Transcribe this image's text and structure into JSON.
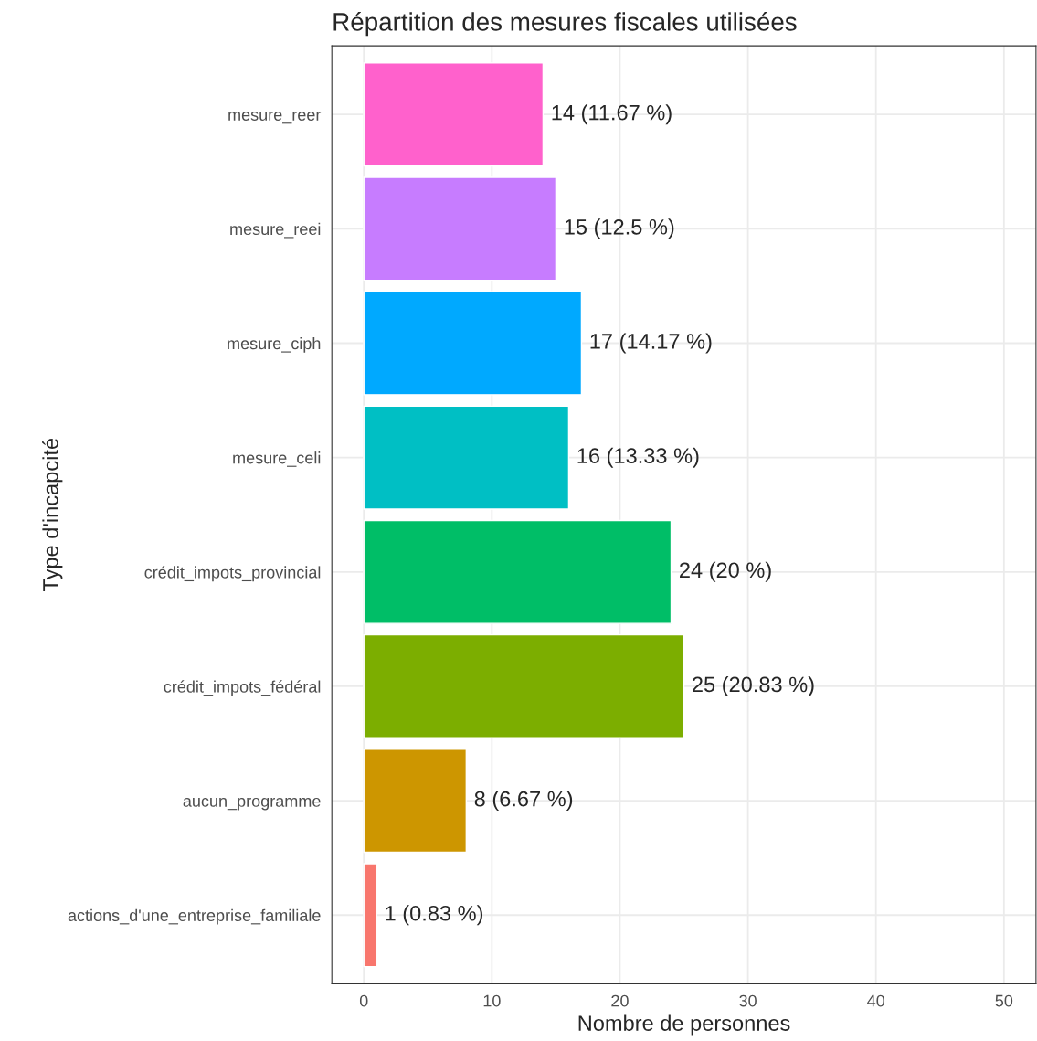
{
  "chart_data": {
    "type": "bar",
    "orientation": "horizontal",
    "title": "Répartition des mesures fiscales utilisées",
    "xlabel": "Nombre de personnes",
    "ylabel": "Type d'incapcité",
    "categories": [
      "mesure_reer",
      "mesure_reei",
      "mesure_ciph",
      "mesure_celi",
      "crédit_impots_provincial",
      "crédit_impots_fédéral",
      "aucun_programme",
      "actions_d'une_entreprise_familiale"
    ],
    "values": [
      14,
      15,
      17,
      16,
      24,
      25,
      8,
      1
    ],
    "colors": [
      "#ff61cc",
      "#c77cff",
      "#00a9ff",
      "#00bfc4",
      "#00be67",
      "#7cae00",
      "#cd9600",
      "#f8766d"
    ],
    "value_labels": [
      "14 (11.67 %)",
      "15 (12.5 %)",
      "17 (14.17 %)",
      "16 (13.33 %)",
      "24 (20 %)",
      "25 (20.83 %)",
      "8 (6.67 %)",
      "1 (0.83 %)"
    ],
    "xlim": [
      -2.5,
      52.5
    ],
    "xticks": [
      0,
      10,
      20,
      30,
      40,
      50
    ],
    "grid": true,
    "legend": false
  }
}
